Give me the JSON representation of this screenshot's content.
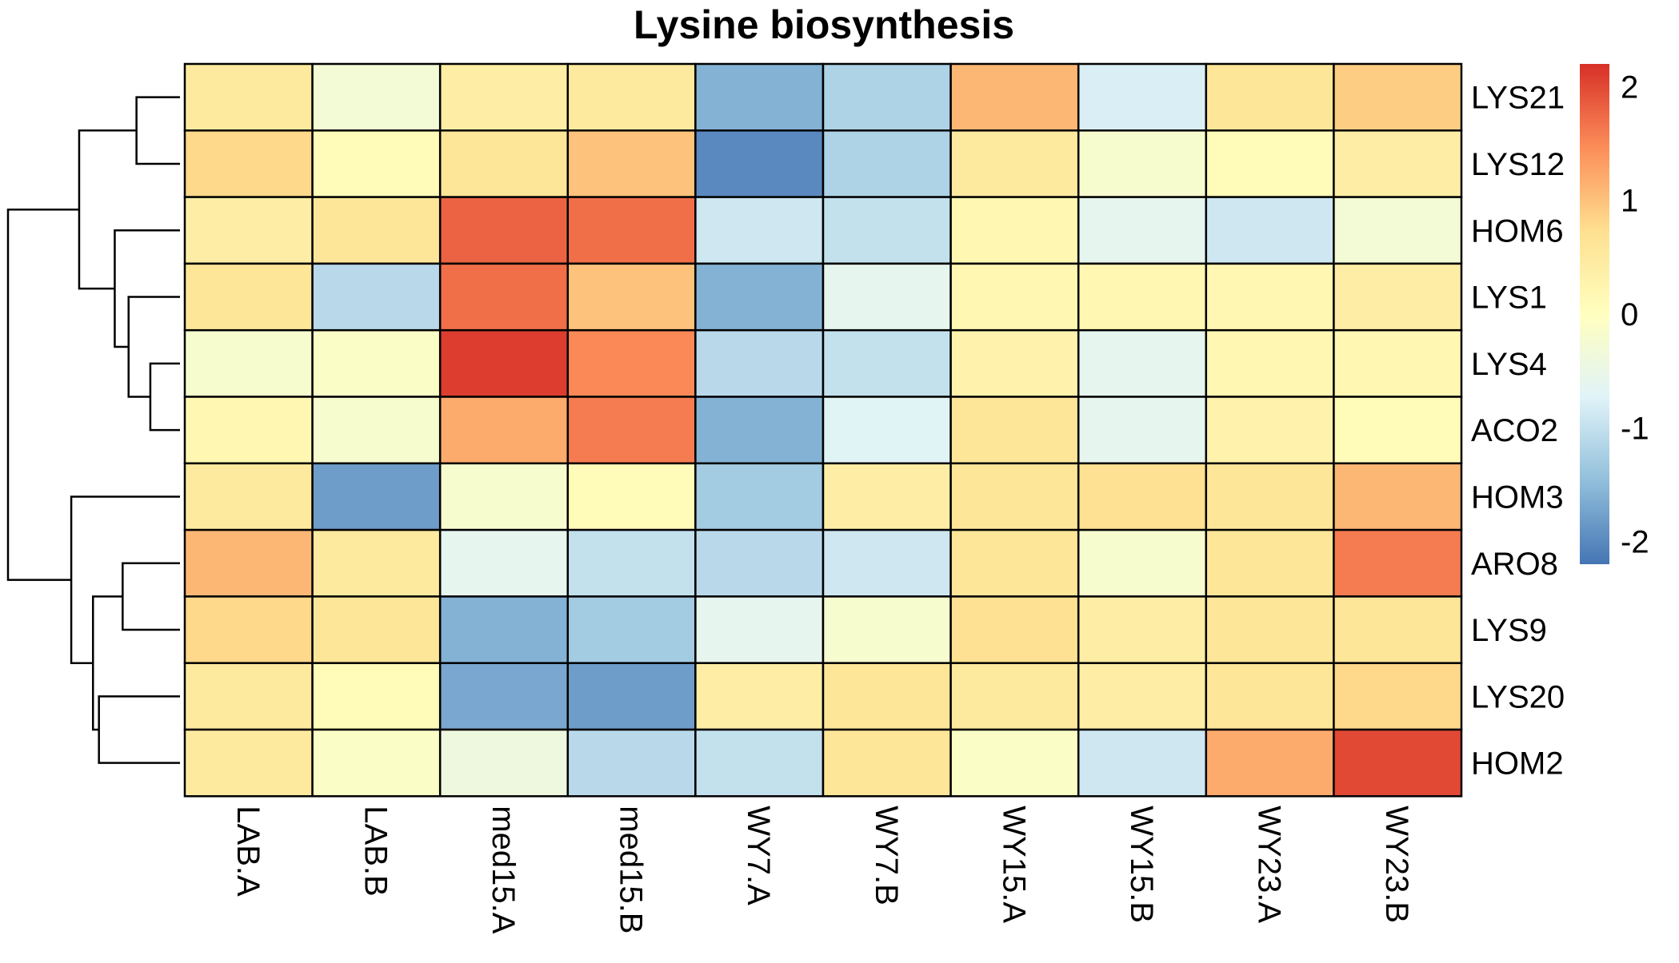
{
  "chart_data": {
    "type": "heatmap",
    "title": "Lysine biosynthesis",
    "rows": [
      "LYS21",
      "LYS12",
      "HOM6",
      "LYS1",
      "LYS4",
      "ACO2",
      "HOM3",
      "ARO8",
      "LYS9",
      "LYS20",
      "HOM2"
    ],
    "columns": [
      "LAB.A",
      "LAB.B",
      "med15.A",
      "med15.B",
      "WY7.A",
      "WY7.B",
      "WY15.A",
      "WY15.B",
      "WY23.A",
      "WY23.B"
    ],
    "values": [
      [
        0.5,
        -0.3,
        0.4,
        0.5,
        -1.6,
        -1.2,
        1.1,
        -0.8,
        0.6,
        0.9
      ],
      [
        0.8,
        0.1,
        0.6,
        1.0,
        -2.0,
        -1.2,
        0.5,
        -0.2,
        0.1,
        0.4
      ],
      [
        0.4,
        0.6,
        1.8,
        1.7,
        -0.9,
        -1.0,
        0.2,
        -0.6,
        -0.9,
        -0.3
      ],
      [
        0.6,
        -1.1,
        1.7,
        1.0,
        -1.6,
        -0.6,
        0.2,
        0.2,
        0.2,
        0.4
      ],
      [
        -0.2,
        -0.1,
        2.1,
        1.5,
        -1.1,
        -1.0,
        0.3,
        -0.6,
        0.2,
        0.2
      ],
      [
        0.2,
        -0.2,
        1.2,
        1.6,
        -1.6,
        -0.7,
        0.6,
        -0.6,
        0.3,
        0.1
      ],
      [
        0.5,
        -1.8,
        -0.2,
        0.1,
        -1.3,
        0.4,
        0.6,
        0.7,
        0.6,
        1.1
      ],
      [
        1.1,
        0.5,
        -0.6,
        -1.0,
        -1.1,
        -0.9,
        0.6,
        -0.2,
        0.6,
        1.6
      ],
      [
        0.8,
        0.6,
        -1.6,
        -1.3,
        -0.6,
        -0.2,
        0.7,
        0.4,
        0.6,
        0.6
      ],
      [
        0.5,
        0.1,
        -1.7,
        -1.8,
        0.4,
        0.6,
        0.5,
        0.4,
        0.6,
        0.8
      ],
      [
        0.5,
        -0.1,
        -0.4,
        -1.1,
        -1.0,
        0.6,
        -0.1,
        -0.9,
        1.2,
        2.0
      ]
    ],
    "color_scale": {
      "low": "#4575B4",
      "mid": "#FFFFBF",
      "high": "#D73027",
      "stops": [
        "#4575B4",
        "#91BFDB",
        "#E0F3F8",
        "#FFFFBF",
        "#FEE090",
        "#FC8D59",
        "#D73027"
      ],
      "min": -2.2,
      "max": 2.2
    },
    "legend": {
      "position": "right",
      "ticks": [
        "2",
        "1",
        "0",
        "-1",
        "-2"
      ],
      "tick_values": [
        2,
        1,
        0,
        -1,
        -2
      ]
    },
    "row_dendrogram": {
      "merges": [
        [
          0,
          1
        ],
        [
          4,
          5
        ],
        [
          3,
          "n1"
        ],
        [
          2,
          "n2"
        ],
        [
          "n0",
          "n3"
        ],
        [
          7,
          8
        ],
        [
          9,
          10
        ],
        [
          "n5",
          "n6"
        ],
        [
          6,
          "n7"
        ],
        [
          "n4",
          "n8"
        ]
      ],
      "heights": [
        0.22,
        0.15,
        0.26,
        0.33,
        0.51,
        0.29,
        0.41,
        0.44,
        0.55,
        0.87
      ]
    },
    "cell_border_color": "#000000",
    "grid": false
  }
}
